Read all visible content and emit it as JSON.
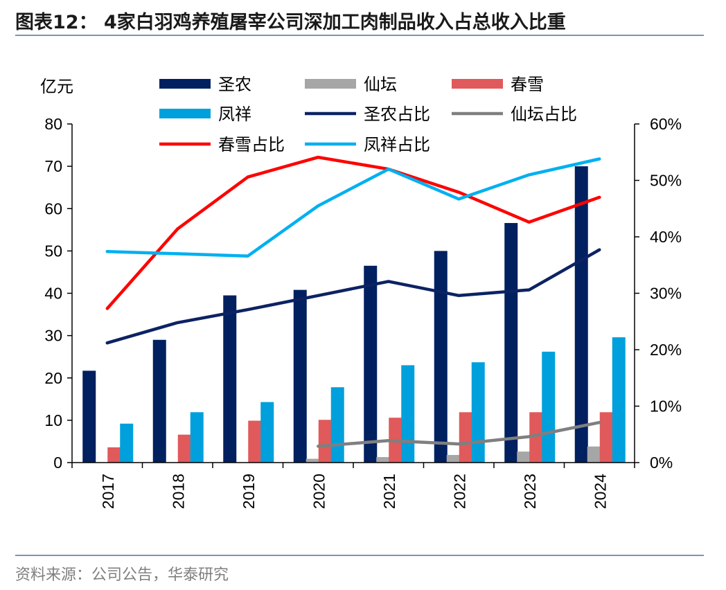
{
  "title": "图表12： 4家白羽鸡养殖屠宰公司深加工肉制品收入占总收入比重",
  "source": "资料来源：公司公告，华泰研究",
  "colors": {
    "shengnong": "#002060",
    "xiantan": "#a6a6a6",
    "chunxue": "#e05a5b",
    "fengxiang": "#00a0dc",
    "shengnong_ratio": "#0c2263",
    "xiantan_ratio": "#7f7f7f",
    "chunxue_ratio": "#ff0000",
    "fengxiang_ratio": "#00b0f0"
  },
  "chart_data": {
    "type": "bar+line",
    "categories": [
      "2017",
      "2018",
      "2019",
      "2020",
      "2021",
      "2022",
      "2023",
      "2024"
    ],
    "left_axis": {
      "label": "亿元",
      "ylim": [
        0,
        80
      ],
      "ticks": [
        0,
        10,
        20,
        30,
        40,
        50,
        60,
        70,
        80
      ]
    },
    "right_axis": {
      "ylim": [
        0,
        60
      ],
      "ticks": [
        "0%",
        "10%",
        "20%",
        "30%",
        "40%",
        "50%",
        "60%"
      ]
    },
    "bar_series": [
      {
        "name": "圣农",
        "color_key": "shengnong",
        "values": [
          21.7,
          29.0,
          39.5,
          40.8,
          46.5,
          50.0,
          56.6,
          70.0
        ]
      },
      {
        "name": "仙坛",
        "color_key": "xiantan",
        "values": [
          null,
          null,
          null,
          0.9,
          1.3,
          1.8,
          2.6,
          3.8
        ]
      },
      {
        "name": "春雪",
        "color_key": "chunxue",
        "values": [
          3.6,
          6.6,
          9.9,
          10.1,
          10.6,
          11.9,
          11.9,
          11.9
        ]
      },
      {
        "name": "凤祥",
        "color_key": "fengxiang",
        "values": [
          9.2,
          11.9,
          14.3,
          17.8,
          23.0,
          23.7,
          26.2,
          29.6
        ]
      }
    ],
    "line_series": [
      {
        "name": "圣农占比",
        "color_key": "shengnong_ratio",
        "values": [
          21.2,
          24.8,
          27.1,
          29.6,
          32.1,
          29.6,
          30.6,
          37.7
        ]
      },
      {
        "name": "仙坛占比",
        "color_key": "xiantan_ratio",
        "values": [
          null,
          null,
          null,
          2.9,
          3.9,
          3.3,
          4.6,
          7.1
        ]
      },
      {
        "name": "春雪占比",
        "color_key": "chunxue_ratio",
        "values": [
          27.3,
          41.4,
          50.6,
          54.1,
          52.0,
          47.9,
          42.6,
          47.0
        ]
      },
      {
        "name": "凤祥占比",
        "color_key": "fengxiang_ratio",
        "values": [
          37.4,
          37.0,
          36.6,
          45.5,
          52.0,
          46.7,
          51.0,
          53.8
        ]
      }
    ],
    "grid": false,
    "legend_position": "top"
  }
}
